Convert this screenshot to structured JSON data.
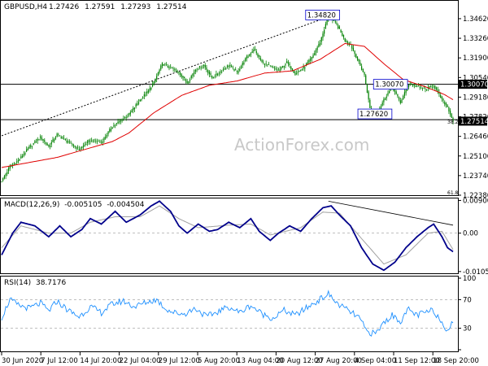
{
  "chart_data": [
    {
      "type": "candlestick",
      "title": "GBPUSD,H4",
      "ohlc_header": [
        "1.27426",
        "1.27591",
        "1.27293",
        "1.27514"
      ],
      "watermark": "ActionForex.com",
      "ylim": [
        1.2238,
        1.3535
      ],
      "y_ticks": [
        "1.34620",
        "1.33260",
        "1.31900",
        "1.30540",
        "1.29180",
        "1.27820",
        "1.26460",
        "1.25100",
        "1.23740",
        "1.22380"
      ],
      "price_path": [
        [
          0,
          1.2338
        ],
        [
          6,
          1.2435
        ],
        [
          12,
          1.2478
        ],
        [
          20,
          1.257
        ],
        [
          28,
          1.264
        ],
        [
          34,
          1.2575
        ],
        [
          40,
          1.2658
        ],
        [
          48,
          1.2605
        ],
        [
          56,
          1.2555
        ],
        [
          64,
          1.262
        ],
        [
          72,
          1.2605
        ],
        [
          80,
          1.2715
        ],
        [
          86,
          1.2755
        ],
        [
          92,
          1.2798
        ],
        [
          100,
          1.29
        ],
        [
          106,
          1.296
        ],
        [
          110,
          1.302
        ],
        [
          116,
          1.315
        ],
        [
          122,
          1.312
        ],
        [
          128,
          1.309
        ],
        [
          134,
          1.302
        ],
        [
          140,
          1.311
        ],
        [
          146,
          1.314
        ],
        [
          152,
          1.305
        ],
        [
          158,
          1.3095
        ],
        [
          164,
          1.314
        ],
        [
          170,
          1.309
        ],
        [
          176,
          1.318
        ],
        [
          182,
          1.325
        ],
        [
          188,
          1.316
        ],
        [
          194,
          1.313
        ],
        [
          200,
          1.31
        ],
        [
          206,
          1.316
        ],
        [
          212,
          1.308
        ],
        [
          218,
          1.312
        ],
        [
          224,
          1.319
        ],
        [
          230,
          1.33
        ],
        [
          236,
          1.348
        ],
        [
          242,
          1.342
        ],
        [
          248,
          1.331
        ],
        [
          252,
          1.328
        ],
        [
          256,
          1.32
        ],
        [
          262,
          1.307
        ],
        [
          266,
          1.284
        ],
        [
          270,
          1.278
        ],
        [
          276,
          1.29
        ],
        [
          282,
          1.299
        ],
        [
          288,
          1.288
        ],
        [
          294,
          1.301
        ],
        [
          300,
          1.299
        ],
        [
          306,
          1.297
        ],
        [
          312,
          1.3
        ],
        [
          318,
          1.29
        ],
        [
          322,
          1.285
        ],
        [
          326,
          1.2752
        ]
      ],
      "ma_path": [
        [
          0,
          1.243
        ],
        [
          20,
          1.2465
        ],
        [
          40,
          1.25
        ],
        [
          60,
          1.2555
        ],
        [
          80,
          1.261
        ],
        [
          92,
          1.267
        ],
        [
          110,
          1.281
        ],
        [
          130,
          1.293
        ],
        [
          150,
          1.3
        ],
        [
          170,
          1.303
        ],
        [
          190,
          1.3085
        ],
        [
          210,
          1.31
        ],
        [
          230,
          1.318
        ],
        [
          248,
          1.329
        ],
        [
          262,
          1.327
        ],
        [
          276,
          1.315
        ],
        [
          290,
          1.304
        ],
        [
          306,
          1.299
        ],
        [
          320,
          1.2935
        ],
        [
          326,
          1.29
        ]
      ],
      "trendline": [
        [
          0,
          1.265
        ],
        [
          238,
          1.3482
        ]
      ],
      "horizontal_levels": [
        {
          "value": 1.3007,
          "label": "1.30070",
          "right_label": "1.30070"
        },
        {
          "value": 1.2762,
          "label": "1.27620"
        }
      ],
      "annotations": [
        {
          "x": 236,
          "y": 1.3482,
          "label": "1.34820"
        }
      ],
      "last_price": "1.27514",
      "level_marks": [
        "38.2",
        "61.8"
      ]
    },
    {
      "type": "line",
      "title": "MACD(12,26,9)",
      "values_header": [
        "-0.005105",
        "-0.004504"
      ],
      "y_ticks": [
        "0.009003",
        "0.00",
        "-0.010566"
      ],
      "ylim": [
        -0.0106,
        0.0091
      ],
      "macd_path": [
        [
          0,
          -0.006
        ],
        [
          8,
          0.0
        ],
        [
          14,
          0.003
        ],
        [
          24,
          0.002
        ],
        [
          34,
          -0.001
        ],
        [
          42,
          0.002
        ],
        [
          50,
          -0.001
        ],
        [
          58,
          0.001
        ],
        [
          64,
          0.004
        ],
        [
          72,
          0.0025
        ],
        [
          82,
          0.006
        ],
        [
          90,
          0.003
        ],
        [
          100,
          0.005
        ],
        [
          108,
          0.0075
        ],
        [
          114,
          0.0088
        ],
        [
          122,
          0.006
        ],
        [
          128,
          0.002
        ],
        [
          134,
          0.0
        ],
        [
          142,
          0.0025
        ],
        [
          150,
          0.0005
        ],
        [
          156,
          0.001
        ],
        [
          164,
          0.003
        ],
        [
          172,
          0.0015
        ],
        [
          180,
          0.004
        ],
        [
          186,
          0.0005
        ],
        [
          194,
          -0.002
        ],
        [
          200,
          0.0
        ],
        [
          208,
          0.002
        ],
        [
          216,
          0.0005
        ],
        [
          224,
          0.004
        ],
        [
          232,
          0.007
        ],
        [
          238,
          0.0075
        ],
        [
          244,
          0.005
        ],
        [
          252,
          0.002
        ],
        [
          260,
          -0.004
        ],
        [
          268,
          -0.0085
        ],
        [
          276,
          -0.0102
        ],
        [
          284,
          -0.008
        ],
        [
          292,
          -0.004
        ],
        [
          300,
          -0.001
        ],
        [
          308,
          0.0015
        ],
        [
          312,
          0.0025
        ],
        [
          318,
          -0.001
        ],
        [
          322,
          -0.004
        ],
        [
          326,
          -0.005105
        ]
      ],
      "signal_path": [
        [
          0,
          -0.004
        ],
        [
          14,
          0.002
        ],
        [
          34,
          0.0
        ],
        [
          50,
          0.0
        ],
        [
          64,
          0.003
        ],
        [
          82,
          0.0045
        ],
        [
          100,
          0.0045
        ],
        [
          114,
          0.0075
        ],
        [
          128,
          0.004
        ],
        [
          142,
          0.0015
        ],
        [
          164,
          0.0022
        ],
        [
          180,
          0.0025
        ],
        [
          194,
          -0.0005
        ],
        [
          216,
          0.0015
        ],
        [
          232,
          0.0058
        ],
        [
          244,
          0.0055
        ],
        [
          260,
          -0.0015
        ],
        [
          276,
          -0.0085
        ],
        [
          292,
          -0.006
        ],
        [
          308,
          0.0
        ],
        [
          318,
          0.0005
        ],
        [
          326,
          -0.004504
        ]
      ],
      "trendline": [
        [
          236,
          0.0088
        ],
        [
          326,
          0.0022
        ]
      ]
    },
    {
      "type": "line",
      "title": "RSI(14)",
      "value_header": "38.7176",
      "y_ticks": [
        "100",
        "70",
        "30",
        "0"
      ],
      "ylim": [
        0,
        100
      ],
      "levels": [
        70,
        30
      ],
      "rsi_path": [
        [
          0,
          45
        ],
        [
          6,
          70
        ],
        [
          12,
          62
        ],
        [
          20,
          58
        ],
        [
          28,
          65
        ],
        [
          34,
          54
        ],
        [
          40,
          68
        ],
        [
          48,
          55
        ],
        [
          56,
          46
        ],
        [
          64,
          60
        ],
        [
          72,
          52
        ],
        [
          80,
          64
        ],
        [
          88,
          68
        ],
        [
          96,
          60
        ],
        [
          104,
          66
        ],
        [
          112,
          70
        ],
        [
          118,
          58
        ],
        [
          124,
          52
        ],
        [
          132,
          50
        ],
        [
          140,
          58
        ],
        [
          148,
          46
        ],
        [
          156,
          53
        ],
        [
          164,
          60
        ],
        [
          172,
          52
        ],
        [
          180,
          62
        ],
        [
          188,
          50
        ],
        [
          196,
          44
        ],
        [
          204,
          55
        ],
        [
          212,
          48
        ],
        [
          220,
          58
        ],
        [
          228,
          68
        ],
        [
          236,
          78
        ],
        [
          242,
          65
        ],
        [
          250,
          55
        ],
        [
          258,
          45
        ],
        [
          264,
          25
        ],
        [
          270,
          22
        ],
        [
          276,
          38
        ],
        [
          282,
          48
        ],
        [
          288,
          40
        ],
        [
          294,
          56
        ],
        [
          300,
          48
        ],
        [
          306,
          52
        ],
        [
          312,
          55
        ],
        [
          318,
          38
        ],
        [
          322,
          28
        ],
        [
          326,
          38.7
        ]
      ]
    }
  ],
  "x_axis": {
    "labels": [
      "30 Jun 2020",
      "7 Jul 12:00",
      "14 Jul 20:00",
      "22 Jul 04:00",
      "29 Jul 12:00",
      "5 Aug 20:00",
      "13 Aug 04:00",
      "20 Aug 12:00",
      "27 Aug 20:00",
      "4 Sep 04:00",
      "11 Sep 12:00",
      "18 Sep 20:00"
    ]
  },
  "colors": {
    "candle": "#008000",
    "ma": "#e00000",
    "macd": "#00008b",
    "signal": "#a0a0a0",
    "trendline": "#000000",
    "level": "#000000",
    "rsi": "#1e90ff",
    "grid_dash": "#aaaaaa"
  }
}
